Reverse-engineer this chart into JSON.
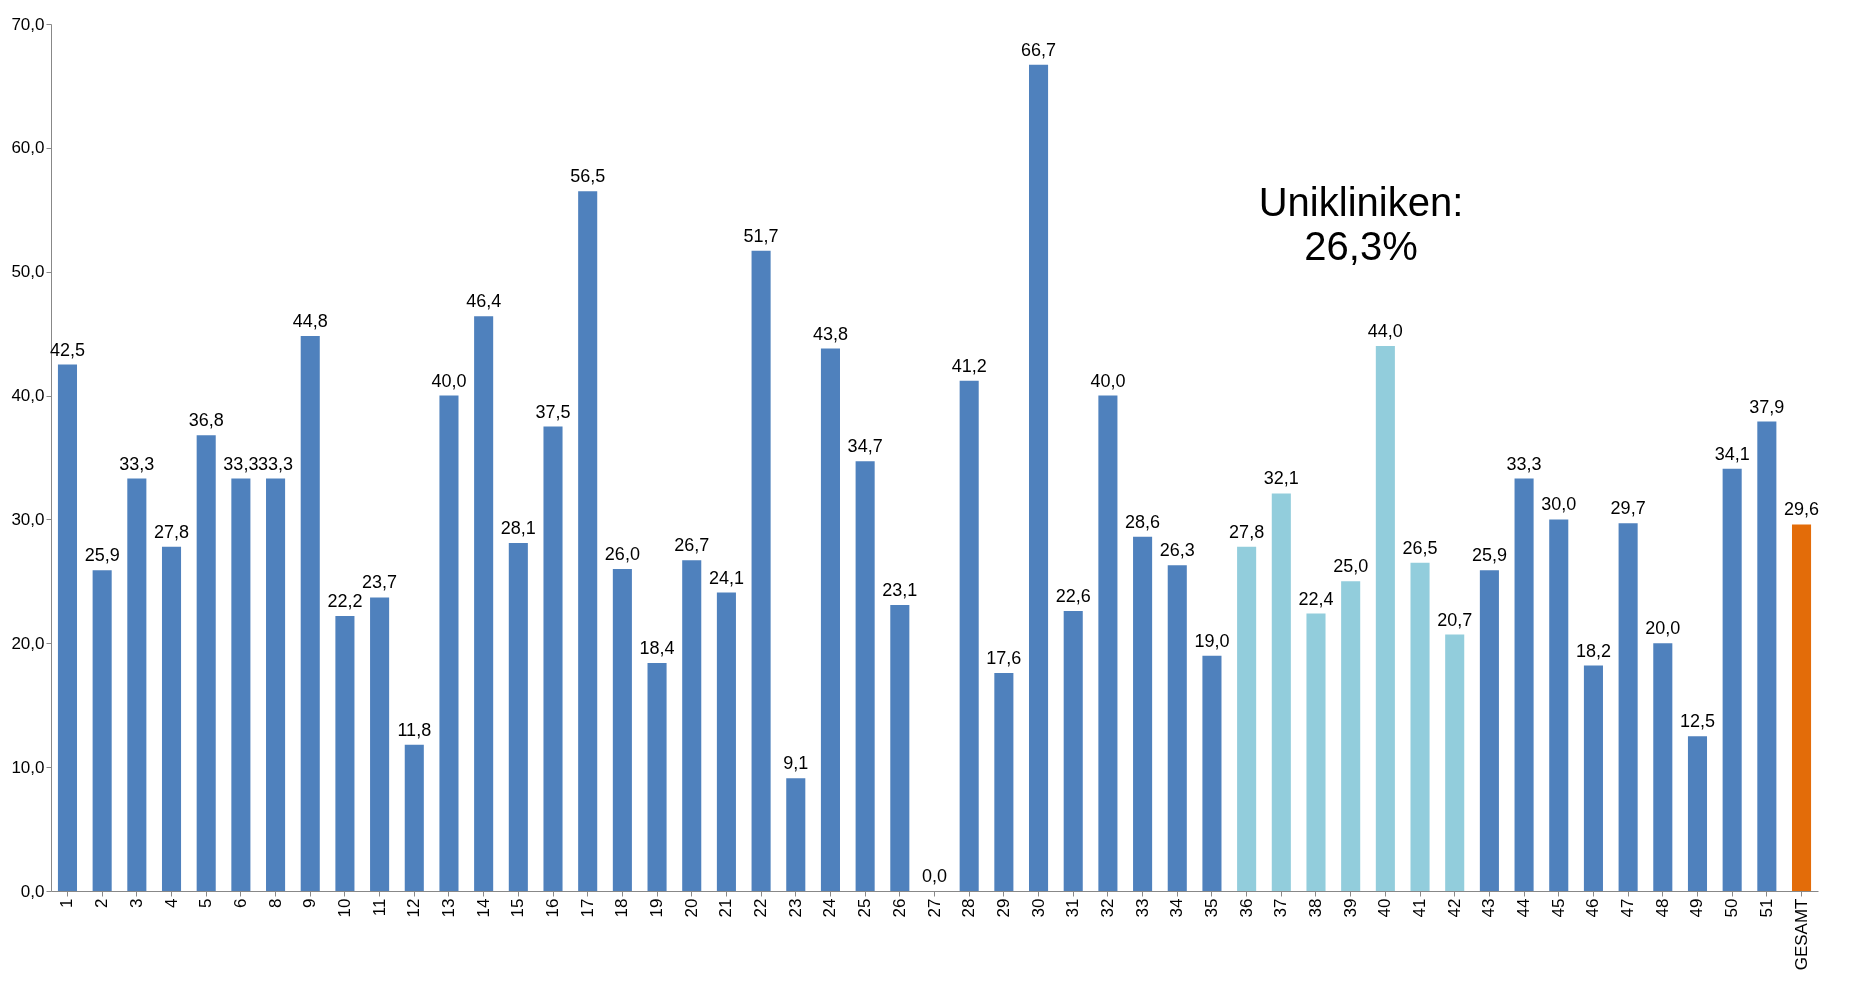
{
  "chart_data": {
    "type": "bar",
    "categories": [
      "1",
      "2",
      "3",
      "4",
      "5",
      "6",
      "8",
      "9",
      "10",
      "11",
      "12",
      "13",
      "14",
      "15",
      "16",
      "17",
      "18",
      "19",
      "20",
      "21",
      "22",
      "23",
      "24",
      "25",
      "26",
      "27",
      "28",
      "29",
      "30",
      "31",
      "32",
      "33",
      "34",
      "35",
      "36",
      "37",
      "38",
      "39",
      "40",
      "41",
      "42",
      "43",
      "44",
      "45",
      "46",
      "47",
      "48",
      "49",
      "50",
      "51",
      "GESAMT"
    ],
    "values": [
      42.5,
      25.9,
      33.3,
      27.8,
      36.8,
      33.3,
      33.3,
      44.8,
      22.2,
      23.7,
      11.8,
      40.0,
      46.4,
      28.1,
      37.5,
      56.5,
      26.0,
      18.4,
      26.7,
      24.1,
      51.7,
      9.1,
      43.8,
      34.7,
      23.1,
      0.0,
      41.2,
      17.6,
      66.7,
      22.6,
      40.0,
      28.6,
      26.3,
      19.0,
      27.8,
      32.1,
      22.4,
      25.0,
      44.0,
      26.5,
      20.7,
      25.9,
      33.3,
      30.0,
      18.2,
      29.7,
      20.0,
      12.5,
      34.1,
      37.9,
      29.6
    ],
    "value_labels": [
      "42,5",
      "25,9",
      "33,3",
      "27,8",
      "36,8",
      "33,3",
      "33,3",
      "44,8",
      "22,2",
      "23,7",
      "11,8",
      "40,0",
      "46,4",
      "28,1",
      "37,5",
      "56,5",
      "26,0",
      "18,4",
      "26,7",
      "24,1",
      "51,7",
      "9,1",
      "43,8",
      "34,7",
      "23,1",
      "0,0",
      "41,2",
      "17,6",
      "66,7",
      "22,6",
      "40,0",
      "28,6",
      "26,3",
      "19,0",
      "27,8",
      "32,1",
      "22,4",
      "25,0",
      "44,0",
      "26,5",
      "20,7",
      "25,9",
      "33,3",
      "30,0",
      "18,2",
      "29,7",
      "20,0",
      "12,5",
      "34,1",
      "37,9",
      "29,6"
    ],
    "colors": [
      "#4f81bd",
      "#4f81bd",
      "#4f81bd",
      "#4f81bd",
      "#4f81bd",
      "#4f81bd",
      "#4f81bd",
      "#4f81bd",
      "#4f81bd",
      "#4f81bd",
      "#4f81bd",
      "#4f81bd",
      "#4f81bd",
      "#4f81bd",
      "#4f81bd",
      "#4f81bd",
      "#4f81bd",
      "#4f81bd",
      "#4f81bd",
      "#4f81bd",
      "#4f81bd",
      "#4f81bd",
      "#4f81bd",
      "#4f81bd",
      "#4f81bd",
      "#4f81bd",
      "#4f81bd",
      "#4f81bd",
      "#4f81bd",
      "#4f81bd",
      "#4f81bd",
      "#4f81bd",
      "#4f81bd",
      "#4f81bd",
      "#92cddc",
      "#92cddc",
      "#92cddc",
      "#92cddc",
      "#92cddc",
      "#92cddc",
      "#92cddc",
      "#4f81bd",
      "#4f81bd",
      "#4f81bd",
      "#4f81bd",
      "#4f81bd",
      "#4f81bd",
      "#4f81bd",
      "#4f81bd",
      "#4f81bd",
      "#e36c09"
    ],
    "ylim": [
      0,
      70
    ],
    "yticks": [
      {
        "value": 0,
        "label": "0,0"
      },
      {
        "value": 10,
        "label": "10,0"
      },
      {
        "value": 20,
        "label": "20,0"
      },
      {
        "value": 30,
        "label": "30,0"
      },
      {
        "value": 40,
        "label": "40,0"
      },
      {
        "value": 50,
        "label": "50,0"
      },
      {
        "value": 60,
        "label": "60,0"
      },
      {
        "value": 70,
        "label": "70,0"
      }
    ],
    "grid": false,
    "annotations": [
      "Unikliniken:\n26,3%"
    ]
  }
}
